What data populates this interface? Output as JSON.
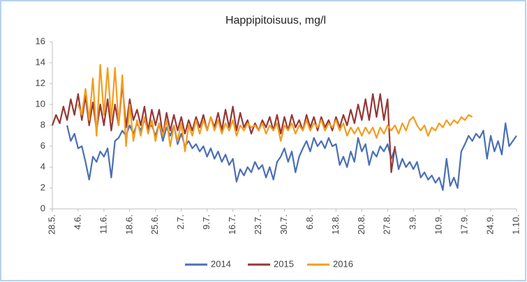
{
  "chart_data": {
    "type": "line",
    "title": "Happipitoisuus, mg/l",
    "categories": [
      "28.5.",
      null,
      null,
      null,
      null,
      null,
      null,
      "4.6.",
      null,
      null,
      null,
      null,
      null,
      null,
      "11.6.",
      null,
      null,
      null,
      null,
      null,
      null,
      "18.6.",
      null,
      null,
      null,
      null,
      null,
      null,
      "25.6.",
      null,
      null,
      null,
      null,
      null,
      null,
      "2.7.",
      null,
      null,
      null,
      null,
      null,
      null,
      "9.7.",
      null,
      null,
      null,
      null,
      null,
      null,
      "16.7.",
      null,
      null,
      null,
      null,
      null,
      null,
      "23.7.",
      null,
      null,
      null,
      null,
      null,
      null,
      "30.7.",
      null,
      null,
      null,
      null,
      null,
      null,
      "6.8.",
      null,
      null,
      null,
      null,
      null,
      null,
      "13.8.",
      null,
      null,
      null,
      null,
      null,
      null,
      "20.8.",
      null,
      null,
      null,
      null,
      null,
      null,
      "27.8.",
      null,
      null,
      null,
      null,
      null,
      null,
      "3.9.",
      null,
      null,
      null,
      null,
      null,
      null,
      "10.9.",
      null,
      null,
      null,
      null,
      null,
      null,
      "17.9.",
      null,
      null,
      null,
      null,
      null,
      null,
      "24.9.",
      null,
      null,
      null,
      null,
      null,
      null,
      "1.10."
    ],
    "series": [
      {
        "name": "2014",
        "color": "#4a6fb5",
        "values": [
          null,
          null,
          null,
          null,
          8.0,
          6.5,
          7.2,
          5.8,
          6.0,
          4.5,
          2.8,
          5.0,
          4.5,
          5.5,
          5.0,
          5.8,
          3.0,
          6.5,
          6.8,
          7.5,
          7.0,
          8.0,
          7.2,
          8.2,
          7.5,
          8.5,
          7.8,
          8.0,
          7.0,
          8.2,
          6.5,
          7.8,
          7.0,
          8.0,
          6.2,
          7.2,
          6.0,
          6.5,
          5.8,
          6.2,
          5.5,
          6.0,
          5.0,
          5.8,
          4.8,
          5.5,
          4.5,
          5.2,
          4.2,
          4.8,
          2.6,
          3.8,
          3.2,
          4.0,
          3.5,
          4.5,
          3.8,
          4.2,
          3.0,
          4.0,
          2.8,
          4.5,
          5.0,
          5.8,
          4.5,
          5.5,
          3.5,
          5.0,
          5.8,
          6.5,
          5.5,
          6.8,
          6.0,
          6.5,
          5.8,
          6.8,
          6.0,
          6.2,
          4.2,
          5.0,
          4.0,
          5.5,
          4.5,
          6.8,
          5.5,
          6.2,
          4.2,
          5.5,
          5.0,
          6.0,
          5.5,
          6.2,
          4.8,
          5.8,
          3.8,
          4.8,
          4.0,
          4.5,
          3.8,
          4.5,
          3.0,
          3.5,
          2.8,
          3.2,
          2.5,
          3.0,
          1.8,
          4.8,
          2.2,
          3.0,
          2.0,
          5.5,
          6.2,
          7.0,
          6.5,
          7.2,
          6.8,
          7.5,
          4.8,
          7.0,
          5.5,
          6.5,
          5.2,
          8.2,
          6.0,
          6.5,
          7.0
        ]
      },
      {
        "name": "2015",
        "color": "#953735",
        "values": [
          8.0,
          9.0,
          8.2,
          9.8,
          8.5,
          10.5,
          9.0,
          11.0,
          8.5,
          10.8,
          8.0,
          10.2,
          7.5,
          10.0,
          8.0,
          10.5,
          7.5,
          10.0,
          8.0,
          12.0,
          7.8,
          10.5,
          8.5,
          9.5,
          8.0,
          9.8,
          7.5,
          9.5,
          8.0,
          9.5,
          7.0,
          9.2,
          7.5,
          9.0,
          7.5,
          8.8,
          7.2,
          8.5,
          7.5,
          8.8,
          7.8,
          9.0,
          7.5,
          8.8,
          7.8,
          9.2,
          7.5,
          9.5,
          7.8,
          9.8,
          7.5,
          9.2,
          7.8,
          8.5,
          7.2,
          8.2,
          7.5,
          8.5,
          7.8,
          8.8,
          7.5,
          9.0,
          7.2,
          8.8,
          7.5,
          9.0,
          7.8,
          8.5,
          7.5,
          9.0,
          7.8,
          8.8,
          7.5,
          8.8,
          7.8,
          8.5,
          7.5,
          8.8,
          7.8,
          9.0,
          8.0,
          9.5,
          8.2,
          10.0,
          8.5,
          10.5,
          8.5,
          11.0,
          8.8,
          11.0,
          8.5,
          10.5,
          3.5,
          6.0,
          null,
          null,
          null,
          null,
          null,
          null,
          null,
          null,
          null,
          null,
          null,
          null,
          null,
          null,
          null,
          null,
          null,
          null,
          null,
          null,
          null,
          null,
          null,
          null,
          null,
          null,
          null,
          null,
          null,
          null,
          null,
          null,
          null
        ]
      },
      {
        "name": "2016",
        "color": "#f59c1c",
        "values": [
          null,
          null,
          null,
          null,
          null,
          null,
          null,
          10.0,
          9.0,
          11.5,
          8.5,
          12.5,
          7.0,
          13.8,
          9.0,
          13.5,
          8.5,
          13.5,
          8.0,
          12.8,
          6.0,
          10.0,
          6.5,
          8.5,
          7.0,
          8.8,
          7.2,
          8.5,
          6.5,
          8.2,
          7.0,
          8.5,
          6.0,
          8.0,
          6.5,
          8.2,
          5.5,
          8.0,
          7.0,
          8.5,
          7.2,
          8.5,
          7.5,
          8.8,
          7.5,
          8.5,
          7.2,
          8.2,
          7.5,
          8.5,
          7.0,
          8.0,
          7.5,
          8.2,
          7.8,
          8.0,
          7.5,
          8.2,
          7.2,
          8.0,
          7.5,
          8.2,
          6.5,
          8.0,
          7.5,
          8.2,
          7.2,
          8.0,
          7.5,
          8.5,
          7.5,
          8.2,
          7.8,
          8.5,
          7.5,
          8.2,
          7.8,
          8.5,
          7.5,
          8.2,
          7.0,
          7.8,
          7.2,
          7.8,
          7.0,
          7.8,
          7.2,
          7.8,
          6.8,
          7.8,
          7.2,
          8.0,
          7.5,
          8.0,
          7.2,
          8.2,
          7.5,
          8.5,
          8.8,
          8.0,
          7.5,
          8.0,
          7.0,
          7.8,
          7.5,
          8.2,
          7.8,
          8.5,
          8.0,
          8.5,
          8.2,
          8.8,
          8.5,
          9.0,
          8.8,
          null,
          null,
          null,
          null,
          null,
          null,
          null,
          null,
          null,
          null,
          null,
          null
        ]
      }
    ],
    "ylim": [
      0,
      16
    ],
    "yticks": [
      0,
      2,
      4,
      6,
      8,
      10,
      12,
      14,
      16
    ],
    "grid": false,
    "legend": "bottom"
  }
}
